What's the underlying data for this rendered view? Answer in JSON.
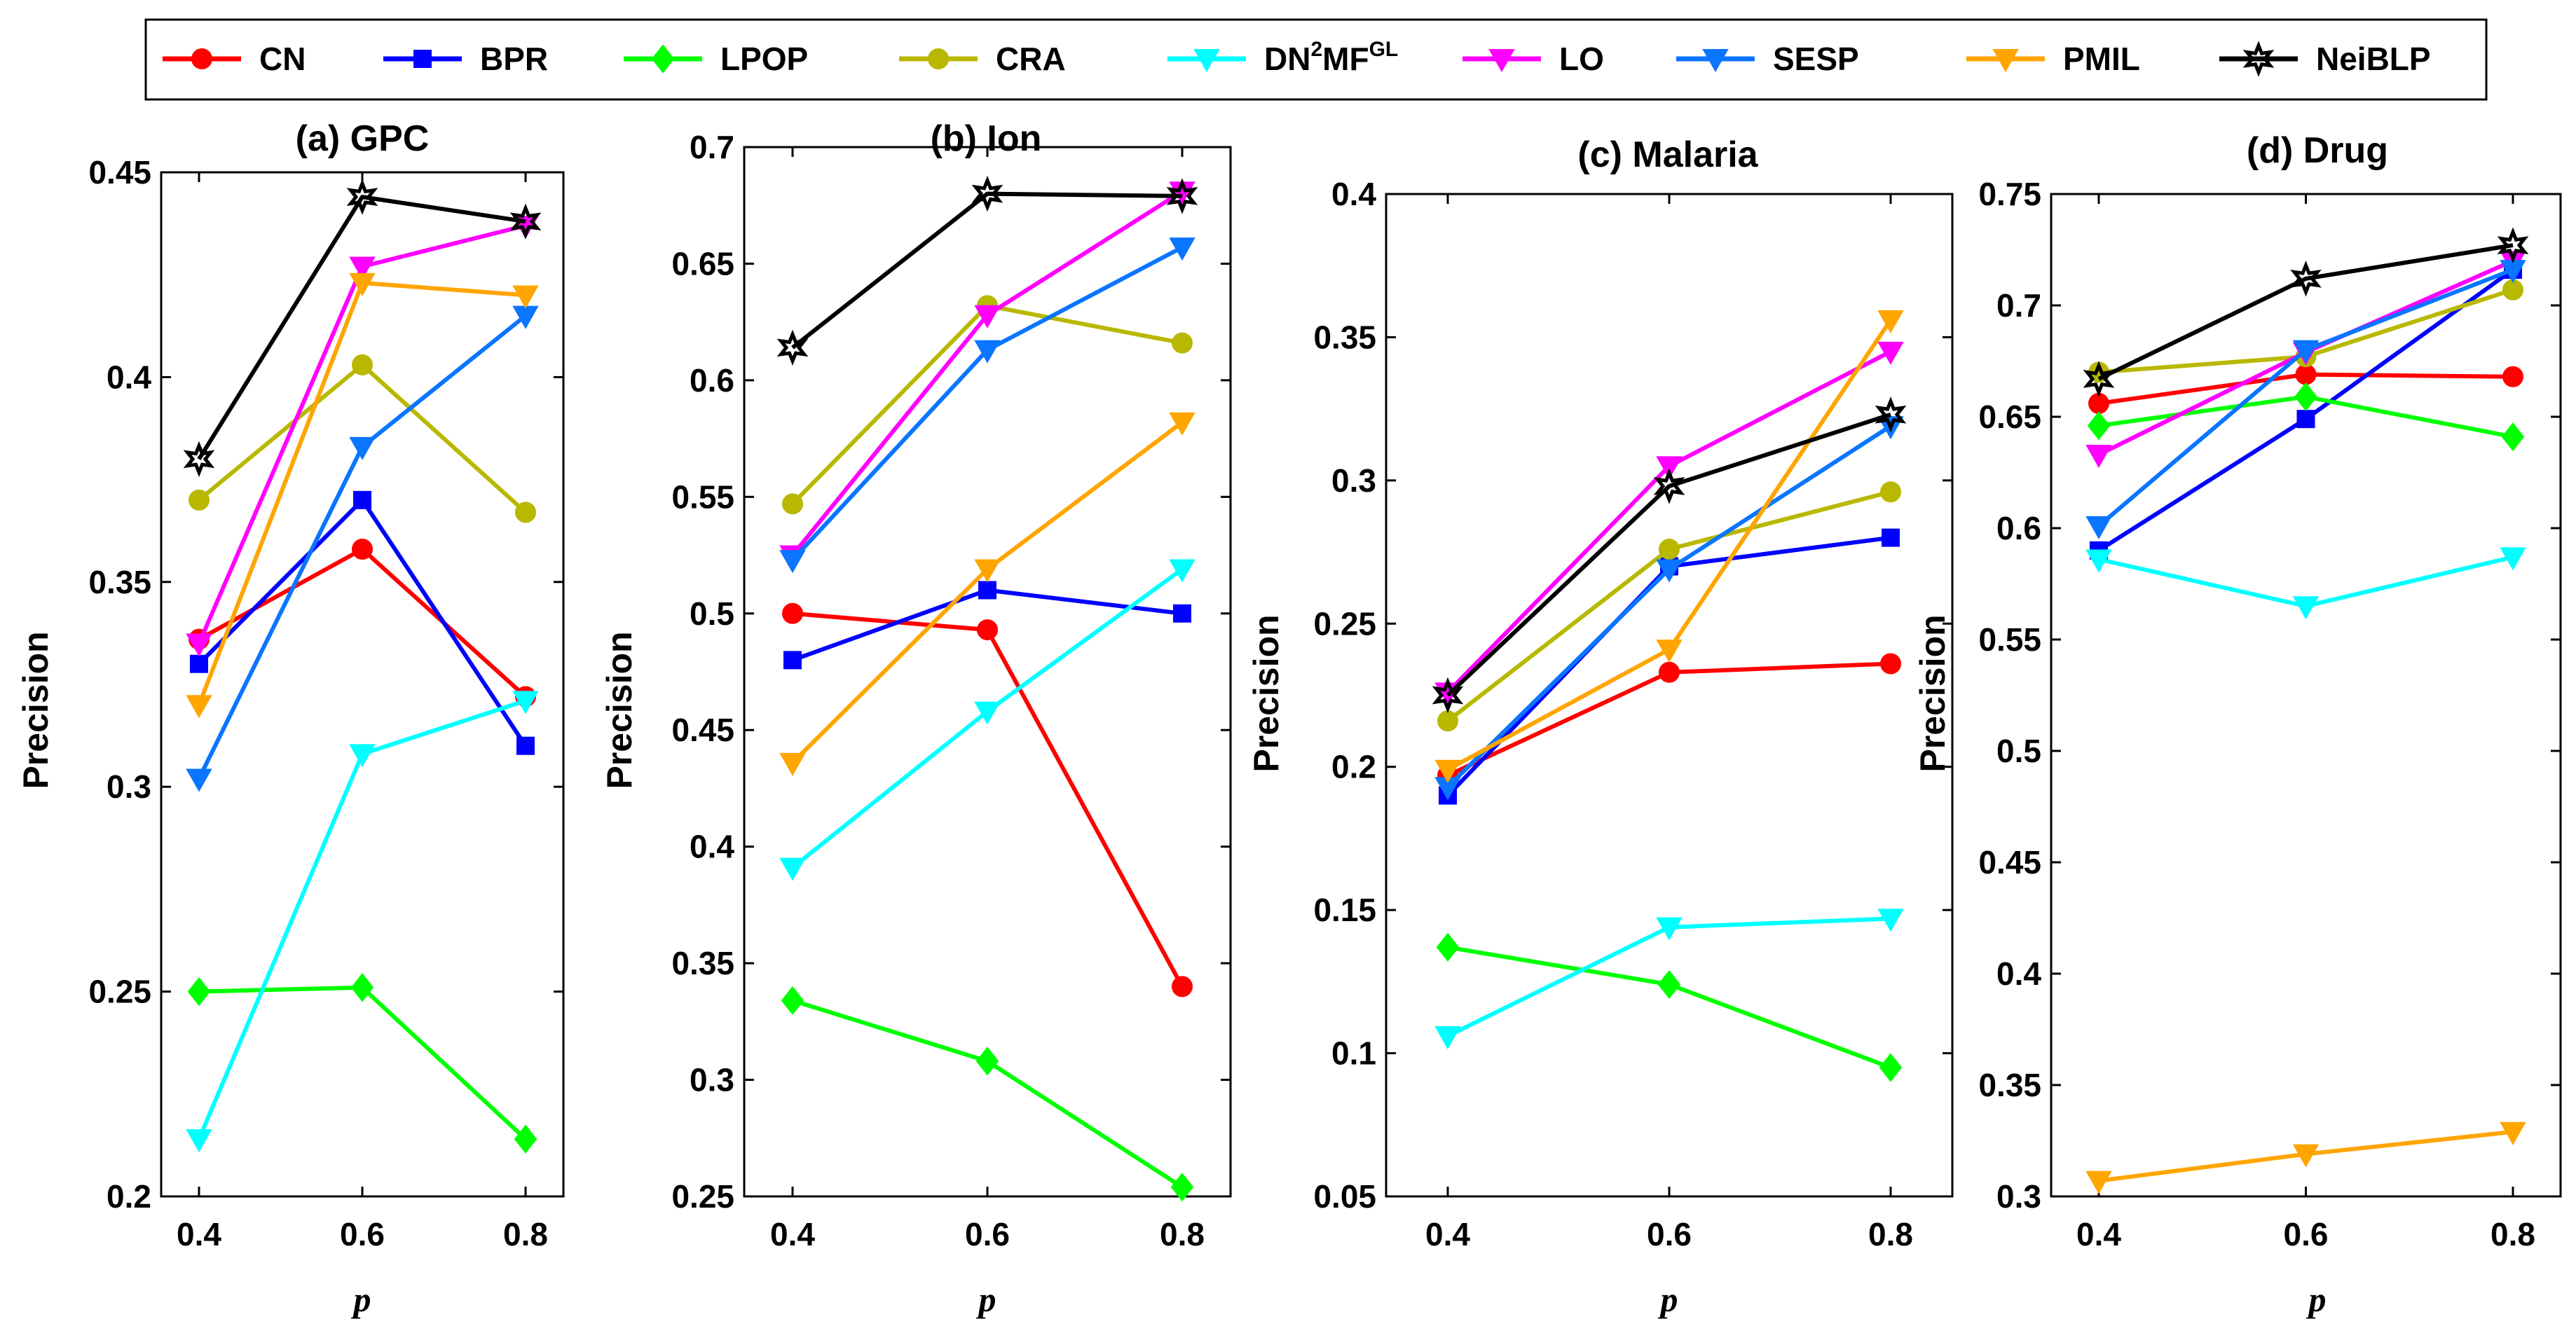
{
  "chart_data": {
    "type": "line",
    "legend_position": "top",
    "series_names": [
      "CN",
      "BPR",
      "LPOP",
      "CRA",
      "DN2MFGL",
      "LO",
      "SESP",
      "PMIL",
      "NeiBLP"
    ],
    "series_style": [
      {
        "name": "CN",
        "color": "#ff0000",
        "marker": "circle"
      },
      {
        "name": "BPR",
        "color": "#0000ff",
        "marker": "square"
      },
      {
        "name": "LPOP",
        "color": "#00ff00",
        "marker": "diamond"
      },
      {
        "name": "CRA",
        "color": "#b8b800",
        "marker": "circle"
      },
      {
        "name": "DN2MFGL",
        "color": "#00ffff",
        "marker": "triangle-down"
      },
      {
        "name": "LO",
        "color": "#ff00ff",
        "marker": "triangle-down"
      },
      {
        "name": "SESP",
        "color": "#0a75ff",
        "marker": "triangle-down"
      },
      {
        "name": "PMIL",
        "color": "#ffa500",
        "marker": "triangle-down"
      },
      {
        "name": "NeiBLP",
        "color": "#000000",
        "marker": "hexagram"
      }
    ],
    "legend": {
      "items": [
        {
          "label": "CN"
        },
        {
          "label": "BPR"
        },
        {
          "label": "LPOP"
        },
        {
          "label": "CRA"
        },
        {
          "label": "DN",
          "sup1": "2",
          "mid": "MF",
          "sup2": "GL"
        },
        {
          "label": "LO"
        },
        {
          "label": "SESP"
        },
        {
          "label": "PMIL"
        },
        {
          "label": "NeiBLP"
        }
      ]
    },
    "panels": [
      {
        "title": "(a) GPC",
        "xlabel": "p",
        "ylabel": "Precision",
        "x": [
          0.4,
          0.6,
          0.8
        ],
        "x_ticks": [
          "0.4",
          "0.6",
          "0.8"
        ],
        "ylim": [
          0.2,
          0.45
        ],
        "y_ticks": [
          "0.2",
          "0.25",
          "0.3",
          "0.35",
          "0.4",
          "0.45"
        ],
        "series": [
          {
            "name": "CN",
            "values": [
              0.336,
              0.358,
              0.322
            ]
          },
          {
            "name": "BPR",
            "values": [
              0.33,
              0.37,
              0.31
            ]
          },
          {
            "name": "LPOP",
            "values": [
              0.25,
              0.251,
              0.214
            ]
          },
          {
            "name": "CRA",
            "values": [
              0.37,
              0.403,
              0.367
            ]
          },
          {
            "name": "DN2MFGL",
            "values": [
              0.214,
              0.308,
              0.321
            ]
          },
          {
            "name": "LO",
            "values": [
              0.335,
              0.427,
              0.437
            ]
          },
          {
            "name": "SESP",
            "values": [
              0.302,
              0.383,
              0.415
            ]
          },
          {
            "name": "PMIL",
            "values": [
              0.32,
              0.423,
              0.42
            ]
          },
          {
            "name": "NeiBLP",
            "values": [
              0.38,
              0.444,
              0.438
            ]
          }
        ]
      },
      {
        "title": "(b) Ion",
        "xlabel": "p",
        "ylabel": "Precision",
        "x": [
          0.4,
          0.6,
          0.8
        ],
        "x_ticks": [
          "0.4",
          "0.6",
          "0.8"
        ],
        "ylim": [
          0.25,
          0.7
        ],
        "y_ticks": [
          "0.25",
          "0.3",
          "0.35",
          "0.4",
          "0.45",
          "0.5",
          "0.55",
          "0.6",
          "0.65",
          "0.7"
        ],
        "series": [
          {
            "name": "CN",
            "values": [
              0.5,
              0.493,
              0.34
            ]
          },
          {
            "name": "BPR",
            "values": [
              0.48,
              0.51,
              0.5
            ]
          },
          {
            "name": "LPOP",
            "values": [
              0.334,
              0.308,
              0.254
            ]
          },
          {
            "name": "CRA",
            "values": [
              0.547,
              0.632,
              0.616
            ]
          },
          {
            "name": "DN2MFGL",
            "values": [
              0.391,
              0.458,
              0.519
            ]
          },
          {
            "name": "LO",
            "values": [
              0.525,
              0.628,
              0.681
            ]
          },
          {
            "name": "SESP",
            "values": [
              0.523,
              0.613,
              0.657
            ]
          },
          {
            "name": "PMIL",
            "values": [
              0.436,
              0.519,
              0.582
            ]
          },
          {
            "name": "NeiBLP",
            "values": [
              0.614,
              0.68,
              0.679
            ]
          }
        ]
      },
      {
        "title": "(c) Malaria",
        "xlabel": "p",
        "ylabel": "Precision",
        "x": [
          0.4,
          0.6,
          0.8
        ],
        "x_ticks": [
          "0.4",
          "0.6",
          "0.8"
        ],
        "ylim": [
          0.05,
          0.4
        ],
        "y_ticks": [
          "0.05",
          "0.1",
          "0.15",
          "0.2",
          "0.25",
          "0.3",
          "0.35",
          "0.4"
        ],
        "series": [
          {
            "name": "CN",
            "values": [
              0.197,
              0.233,
              0.236
            ]
          },
          {
            "name": "BPR",
            "values": [
              0.19,
              0.27,
              0.28
            ]
          },
          {
            "name": "LPOP",
            "values": [
              0.137,
              0.124,
              0.095
            ]
          },
          {
            "name": "CRA",
            "values": [
              0.216,
              0.276,
              0.296
            ]
          },
          {
            "name": "DN2MFGL",
            "values": [
              0.106,
              0.144,
              0.147
            ]
          },
          {
            "name": "LO",
            "values": [
              0.226,
              0.305,
              0.345
            ]
          },
          {
            "name": "SESP",
            "values": [
              0.193,
              0.269,
              0.319
            ]
          },
          {
            "name": "PMIL",
            "values": [
              0.199,
              0.241,
              0.356
            ]
          },
          {
            "name": "NeiBLP",
            "values": [
              0.225,
              0.298,
              0.323
            ]
          }
        ]
      },
      {
        "title": "(d) Drug",
        "xlabel": "p",
        "ylabel": "Precision",
        "x": [
          0.4,
          0.6,
          0.8
        ],
        "x_ticks": [
          "0.4",
          "0.6",
          "0.8"
        ],
        "ylim": [
          0.3,
          0.75
        ],
        "y_ticks": [
          "0.3",
          "0.35",
          "0.4",
          "0.45",
          "0.5",
          "0.55",
          "0.6",
          "0.65",
          "0.7",
          "0.75"
        ],
        "series": [
          {
            "name": "CN",
            "values": [
              0.656,
              0.669,
              0.668
            ]
          },
          {
            "name": "BPR",
            "values": [
              0.59,
              0.649,
              0.716
            ]
          },
          {
            "name": "LPOP",
            "values": [
              0.646,
              0.659,
              0.641
            ]
          },
          {
            "name": "CRA",
            "values": [
              0.67,
              0.677,
              0.707
            ]
          },
          {
            "name": "DN2MFGL",
            "values": [
              0.586,
              0.565,
              0.587
            ]
          },
          {
            "name": "LO",
            "values": [
              0.633,
              0.679,
              0.72
            ]
          },
          {
            "name": "SESP",
            "values": [
              0.601,
              0.68,
              0.716
            ]
          },
          {
            "name": "PMIL",
            "values": [
              0.307,
              0.319,
              0.329
            ]
          },
          {
            "name": "NeiBLP",
            "values": [
              0.667,
              0.712,
              0.727
            ]
          }
        ]
      }
    ]
  }
}
